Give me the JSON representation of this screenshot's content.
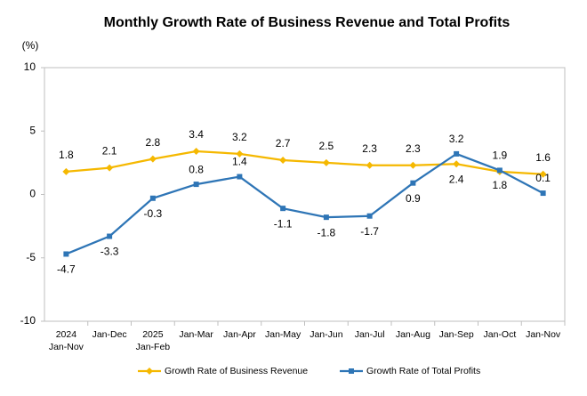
{
  "chart_data": {
    "type": "line",
    "title": "Monthly Growth Rate of Business Revenue and Total Profits",
    "y_unit": "(%)",
    "categories": [
      "Jan-Nov",
      "Jan-Dec",
      "Jan-Feb",
      "Jan-Mar",
      "Jan-Apr",
      "Jan-May",
      "Jan-Jun",
      "Jan-Jul",
      "Jan-Aug",
      "Jan-Sep",
      "Jan-Oct",
      "Jan-Nov"
    ],
    "category_years": [
      "2024",
      null,
      "2025",
      null,
      null,
      null,
      null,
      null,
      null,
      null,
      null,
      null
    ],
    "series": [
      {
        "name": "Growth Rate of Business Revenue",
        "color": "#f5b800",
        "marker": "diamond",
        "values": [
          1.8,
          2.1,
          2.8,
          3.4,
          3.2,
          2.7,
          2.5,
          2.3,
          2.3,
          2.4,
          1.8,
          1.6
        ]
      },
      {
        "name": "Growth Rate of Total Profits",
        "color": "#2e75b6",
        "marker": "square",
        "values": [
          -4.7,
          -3.3,
          -0.3,
          0.8,
          1.4,
          -1.1,
          -1.8,
          -1.7,
          0.9,
          3.2,
          1.9,
          0.1
        ]
      }
    ],
    "ylim": [
      -10,
      10
    ],
    "yticks": [
      -10,
      -5,
      0,
      5,
      10
    ],
    "grid": false,
    "legend": "bottom"
  }
}
